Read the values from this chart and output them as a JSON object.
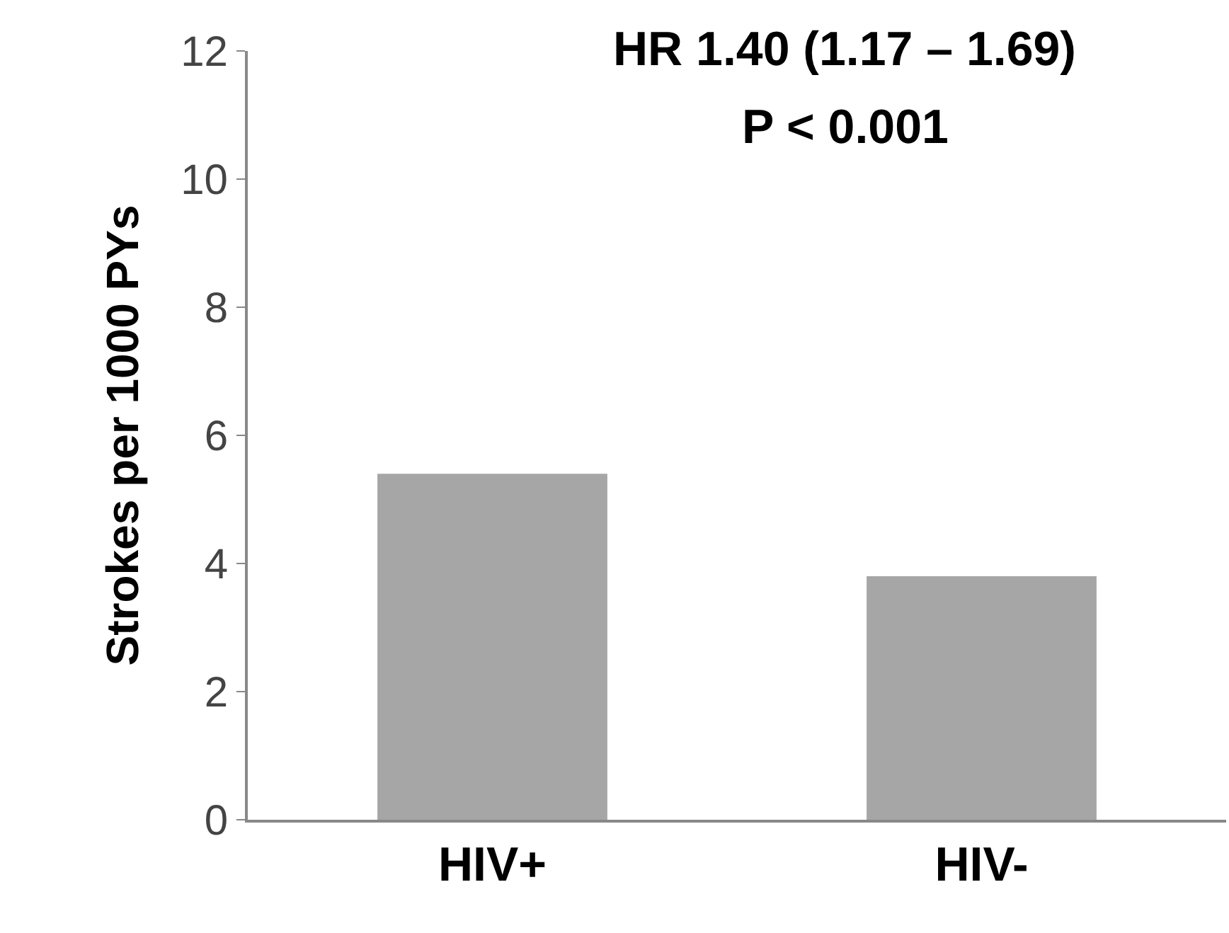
{
  "chart_data": {
    "type": "bar",
    "ylabel": "Strokes per 1000 PYs",
    "categories": [
      "HIV+",
      "HIV-"
    ],
    "values": [
      5.4,
      3.8
    ],
    "color": "#a6a6a6",
    "ylim": [
      0,
      12
    ],
    "yticks": [
      0,
      2,
      4,
      6,
      8,
      10,
      12
    ],
    "grid": false,
    "annotations": [
      "HR 1.40 (1.17 – 1.69)",
      "P < 0.001"
    ]
  }
}
